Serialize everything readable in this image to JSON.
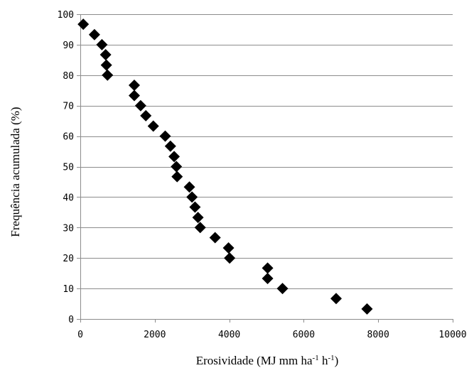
{
  "chart_data": {
    "type": "scatter",
    "title": "",
    "xlabel": {
      "main": "Erosividade (MJ mm ha",
      "sup1": "-1",
      "mid": " h",
      "sup2": "-1",
      "end": ")"
    },
    "ylabel": "Frequência acumulada (%)",
    "xlim": [
      0,
      10000
    ],
    "ylim": [
      0,
      100
    ],
    "x_ticks": [
      0,
      2000,
      4000,
      6000,
      8000,
      10000
    ],
    "y_ticks": [
      0,
      10,
      20,
      30,
      40,
      50,
      60,
      70,
      80,
      90,
      100
    ],
    "grid": "horizontal",
    "marker": "diamond",
    "marker_color": "#000000",
    "gridline_color": "#8c8c8c",
    "points": [
      {
        "x": 80,
        "y": 96.7
      },
      {
        "x": 380,
        "y": 93.3
      },
      {
        "x": 580,
        "y": 90.0
      },
      {
        "x": 680,
        "y": 86.7
      },
      {
        "x": 700,
        "y": 83.3
      },
      {
        "x": 730,
        "y": 80.0
      },
      {
        "x": 1450,
        "y": 76.7
      },
      {
        "x": 1450,
        "y": 73.3
      },
      {
        "x": 1620,
        "y": 70.0
      },
      {
        "x": 1760,
        "y": 66.7
      },
      {
        "x": 1960,
        "y": 63.3
      },
      {
        "x": 2280,
        "y": 60.0
      },
      {
        "x": 2420,
        "y": 56.7
      },
      {
        "x": 2520,
        "y": 53.3
      },
      {
        "x": 2580,
        "y": 50.0
      },
      {
        "x": 2600,
        "y": 46.7
      },
      {
        "x": 2930,
        "y": 43.3
      },
      {
        "x": 3000,
        "y": 40.0
      },
      {
        "x": 3080,
        "y": 36.7
      },
      {
        "x": 3160,
        "y": 33.3
      },
      {
        "x": 3220,
        "y": 30.0
      },
      {
        "x": 3620,
        "y": 26.7
      },
      {
        "x": 3980,
        "y": 23.3
      },
      {
        "x": 4010,
        "y": 20.0
      },
      {
        "x": 5030,
        "y": 16.7
      },
      {
        "x": 5030,
        "y": 13.3
      },
      {
        "x": 5430,
        "y": 10.0
      },
      {
        "x": 6870,
        "y": 6.7
      },
      {
        "x": 7700,
        "y": 3.3
      }
    ]
  }
}
